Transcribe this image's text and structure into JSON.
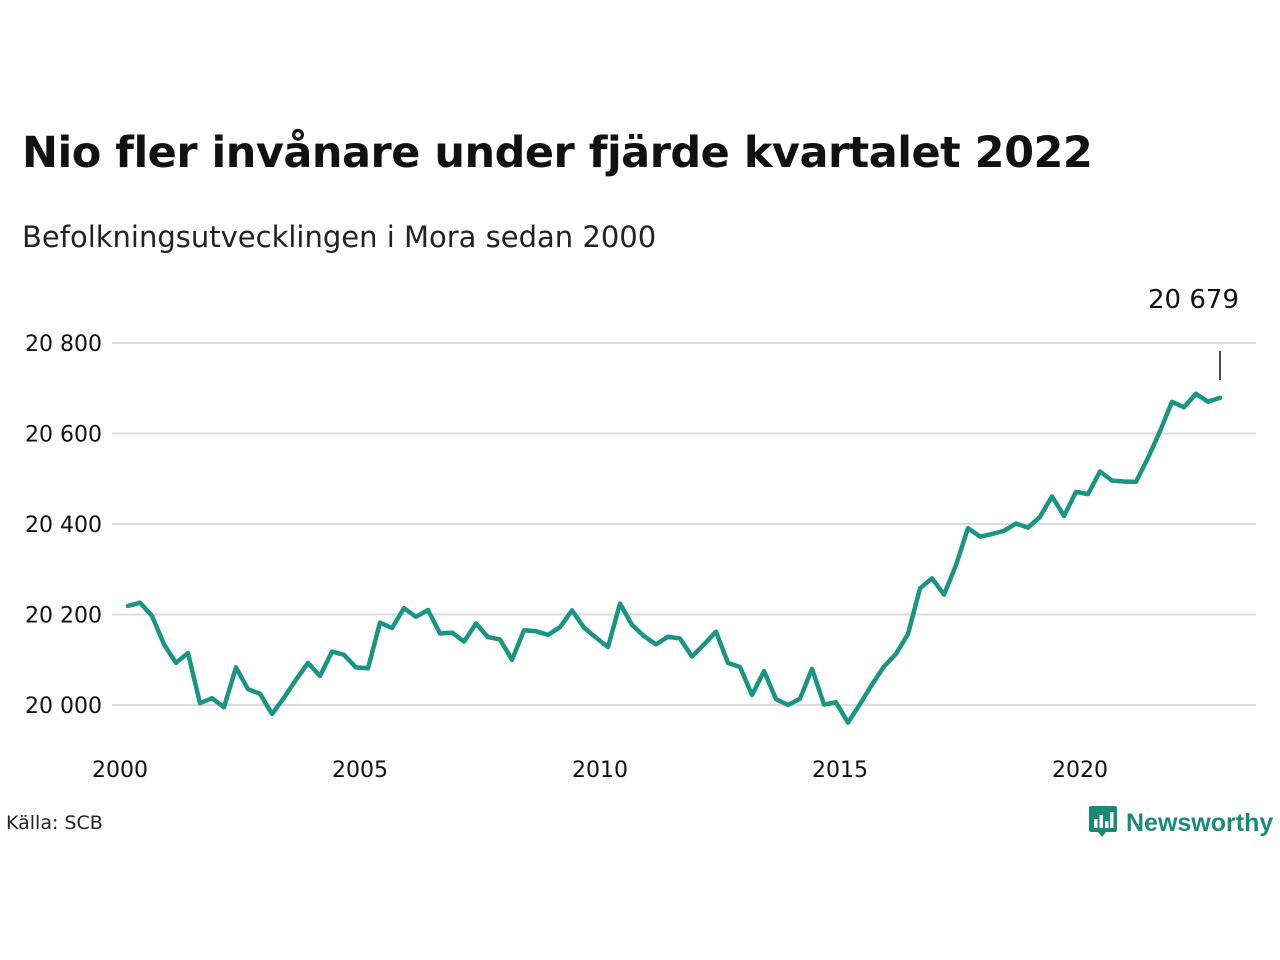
{
  "header": {
    "title": "Nio fler invånare under fjärde kvartalet 2022",
    "subtitle": "Befolkningsutvecklingen i Mora sedan 2000"
  },
  "footer": {
    "source": "Källa: SCB",
    "brand": "Newsworthy",
    "brand_icon": "bar-chart-speech-icon"
  },
  "colors": {
    "line": "#1a9584",
    "grid": "#dcdcdc",
    "brand": "#1a8a78"
  },
  "chart_data": {
    "type": "line",
    "title": "Nio fler invånare under fjärde kvartalet 2022",
    "subtitle": "Befolkningsutvecklingen i Mora sedan 2000",
    "xlabel": "",
    "ylabel": "",
    "x_ticks": [
      "2000",
      "2005",
      "2010",
      "2015",
      "2020"
    ],
    "y_ticks": [
      "20 000",
      "20 200",
      "20 400",
      "20 600",
      "20 800"
    ],
    "ylim": [
      19930,
      20830
    ],
    "xlim": [
      "2000 Q1",
      "2023 Q4"
    ],
    "grid": true,
    "annotation": {
      "label": "20 679",
      "at": "2022 Q4"
    },
    "series": [
      {
        "x": [
          "2000 Q1",
          "2000 Q2",
          "2000 Q3",
          "2000 Q4",
          "2001 Q1",
          "2001 Q2",
          "2001 Q3",
          "2001 Q4",
          "2002 Q1",
          "2002 Q2",
          "2002 Q3",
          "2002 Q4",
          "2003 Q1",
          "2003 Q2",
          "2003 Q3",
          "2003 Q4",
          "2004 Q1",
          "2004 Q2",
          "2004 Q3",
          "2004 Q4",
          "2005 Q1",
          "2005 Q2",
          "2005 Q3",
          "2005 Q4",
          "2006 Q1",
          "2006 Q2",
          "2006 Q3",
          "2006 Q4",
          "2007 Q1",
          "2007 Q2",
          "2007 Q3",
          "2007 Q4",
          "2008 Q1",
          "2008 Q2",
          "2008 Q3",
          "2008 Q4",
          "2009 Q1",
          "2009 Q2",
          "2009 Q3",
          "2009 Q4",
          "2010 Q1",
          "2010 Q2",
          "2010 Q3",
          "2010 Q4",
          "2011 Q1",
          "2011 Q2",
          "2011 Q3",
          "2011 Q4",
          "2012 Q1",
          "2012 Q2",
          "2012 Q3",
          "2012 Q4",
          "2013 Q1",
          "2013 Q2",
          "2013 Q3",
          "2013 Q4",
          "2014 Q1",
          "2014 Q2",
          "2014 Q3",
          "2014 Q4",
          "2015 Q1",
          "2015 Q2",
          "2015 Q3",
          "2015 Q4",
          "2016 Q1",
          "2016 Q2",
          "2016 Q3",
          "2016 Q4",
          "2017 Q1",
          "2017 Q2",
          "2017 Q3",
          "2017 Q4",
          "2018 Q1",
          "2018 Q2",
          "2018 Q3",
          "2018 Q4",
          "2019 Q1",
          "2019 Q2",
          "2019 Q3",
          "2019 Q4",
          "2020 Q1",
          "2020 Q2",
          "2020 Q3",
          "2020 Q4",
          "2021 Q1",
          "2021 Q2",
          "2021 Q3",
          "2021 Q4",
          "2022 Q1",
          "2022 Q2",
          "2022 Q3",
          "2022 Q4"
        ],
        "values": [
          20219,
          20226,
          20197,
          20134,
          20093,
          20115,
          20004,
          20015,
          19995,
          20083,
          20035,
          20025,
          19980,
          20016,
          20056,
          20093,
          20064,
          20118,
          20111,
          20083,
          20081,
          20182,
          20170,
          20214,
          20195,
          20210,
          20158,
          20160,
          20140,
          20180,
          20150,
          20145,
          20100,
          20165,
          20163,
          20155,
          20172,
          20209,
          20171,
          20149,
          20128,
          20224,
          20177,
          20152,
          20134,
          20151,
          20147,
          20107,
          20134,
          20162,
          20093,
          20084,
          20022,
          20075,
          20013,
          20000,
          20014,
          20080,
          20001,
          20006,
          19961,
          20002,
          20045,
          20085,
          20113,
          20157,
          20258,
          20280,
          20244,
          20309,
          20391,
          20372,
          20378,
          20385,
          20401,
          20392,
          20416,
          20461,
          20418,
          20471,
          20466,
          20516,
          20496,
          20494,
          20493,
          20546,
          20605,
          20670,
          20658,
          20688,
          20670,
          20679
        ]
      }
    ]
  }
}
